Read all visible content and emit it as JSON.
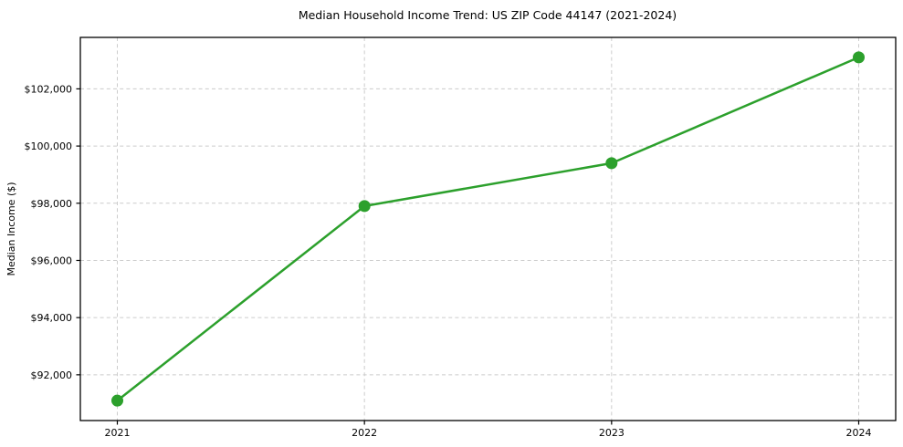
{
  "chart_data": {
    "type": "line",
    "title": "Median Household Income Trend: US ZIP Code 44147 (2021-2024)",
    "xlabel": "",
    "ylabel": "Median Income ($)",
    "x": [
      "2021",
      "2022",
      "2023",
      "2024"
    ],
    "series": [
      {
        "name": "Median household income",
        "values": [
          91100,
          97900,
          99400,
          103100
        ],
        "color": "#2ca02c",
        "marker": "circle"
      }
    ],
    "ylim": [
      90400,
      103800
    ],
    "yticks": [
      {
        "value": 92000,
        "label": "$92,000"
      },
      {
        "value": 94000,
        "label": "$94,000"
      },
      {
        "value": 96000,
        "label": "$96,000"
      },
      {
        "value": 98000,
        "label": "$98,000"
      },
      {
        "value": 100000,
        "label": "$100,000"
      },
      {
        "value": 102000,
        "label": "$102,000"
      }
    ],
    "grid": "dashed",
    "legend": "none",
    "colors": {
      "line": "#2ca02c",
      "marker": "#2ca02c",
      "grid": "#cccccc",
      "axis": "#000000",
      "text": "#000000",
      "background": "#ffffff"
    }
  }
}
